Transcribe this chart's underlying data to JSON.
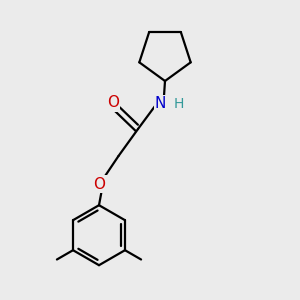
{
  "background_color": "#ebebeb",
  "bond_color": "#000000",
  "N_color": "#0000cc",
  "O_color": "#cc0000",
  "H_color": "#339999",
  "line_width": 1.6,
  "font_size_atom": 11,
  "fig_size": [
    3.0,
    3.0
  ],
  "dpi": 100,
  "xlim": [
    0,
    10
  ],
  "ylim": [
    0,
    10
  ]
}
